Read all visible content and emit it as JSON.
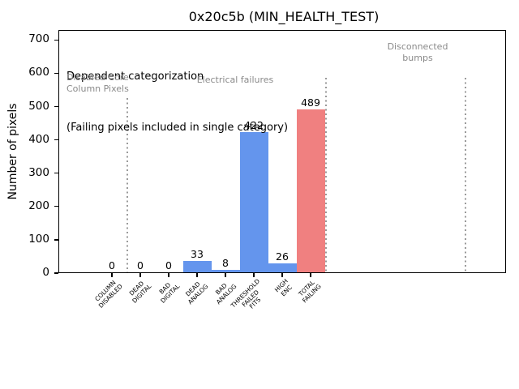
{
  "chart_data": {
    "type": "bar",
    "title": "0x20c5b (MIN_HEALTH_TEST)",
    "ylabel": "Number of pixels",
    "xlabel": "",
    "ylim": [
      0,
      730
    ],
    "yticks": [
      0,
      100,
      200,
      300,
      400,
      500,
      600,
      700
    ],
    "categories": [
      "COLUMN\nDISABLED",
      "DEAD\nDIGITAL",
      "BAD\nDIGITAL",
      "DEAD\nANALOG",
      "BAD\nANALOG",
      "THRESHOLD\nFAILED\nFITS",
      "HIGH\nENC",
      "TOTAL\nFAILING"
    ],
    "values": [
      0,
      0,
      0,
      33,
      8,
      422,
      26,
      489
    ],
    "bar_value_labels": [
      "0",
      "0",
      "0",
      "33",
      "8",
      "422",
      "26",
      "489"
    ],
    "bar_colors": [
      "#6495ED",
      "#6495ED",
      "#6495ED",
      "#6495ED",
      "#6495ED",
      "#6495ED",
      "#6495ED",
      "#F08080"
    ],
    "grid": false,
    "legend": null,
    "annotations": {
      "dependent_line1": "Dependent categorization",
      "dependent_line2": "(Failing pixels included in single category)",
      "disabled_core_region": "Disabled Core\nColumn Pixels",
      "electrical_region": "Electrical failures",
      "disconnected_region": "Disconnected\nbumps"
    },
    "separator_lines": {
      "count": 3,
      "style": "dotted",
      "color": "#9a9a9a"
    }
  },
  "colors": {
    "bar_blue": "#6495ED",
    "bar_fail_red": "#F08080",
    "annotation_gray": "#8a8a8a",
    "separator_gray": "#9a9a9a"
  }
}
